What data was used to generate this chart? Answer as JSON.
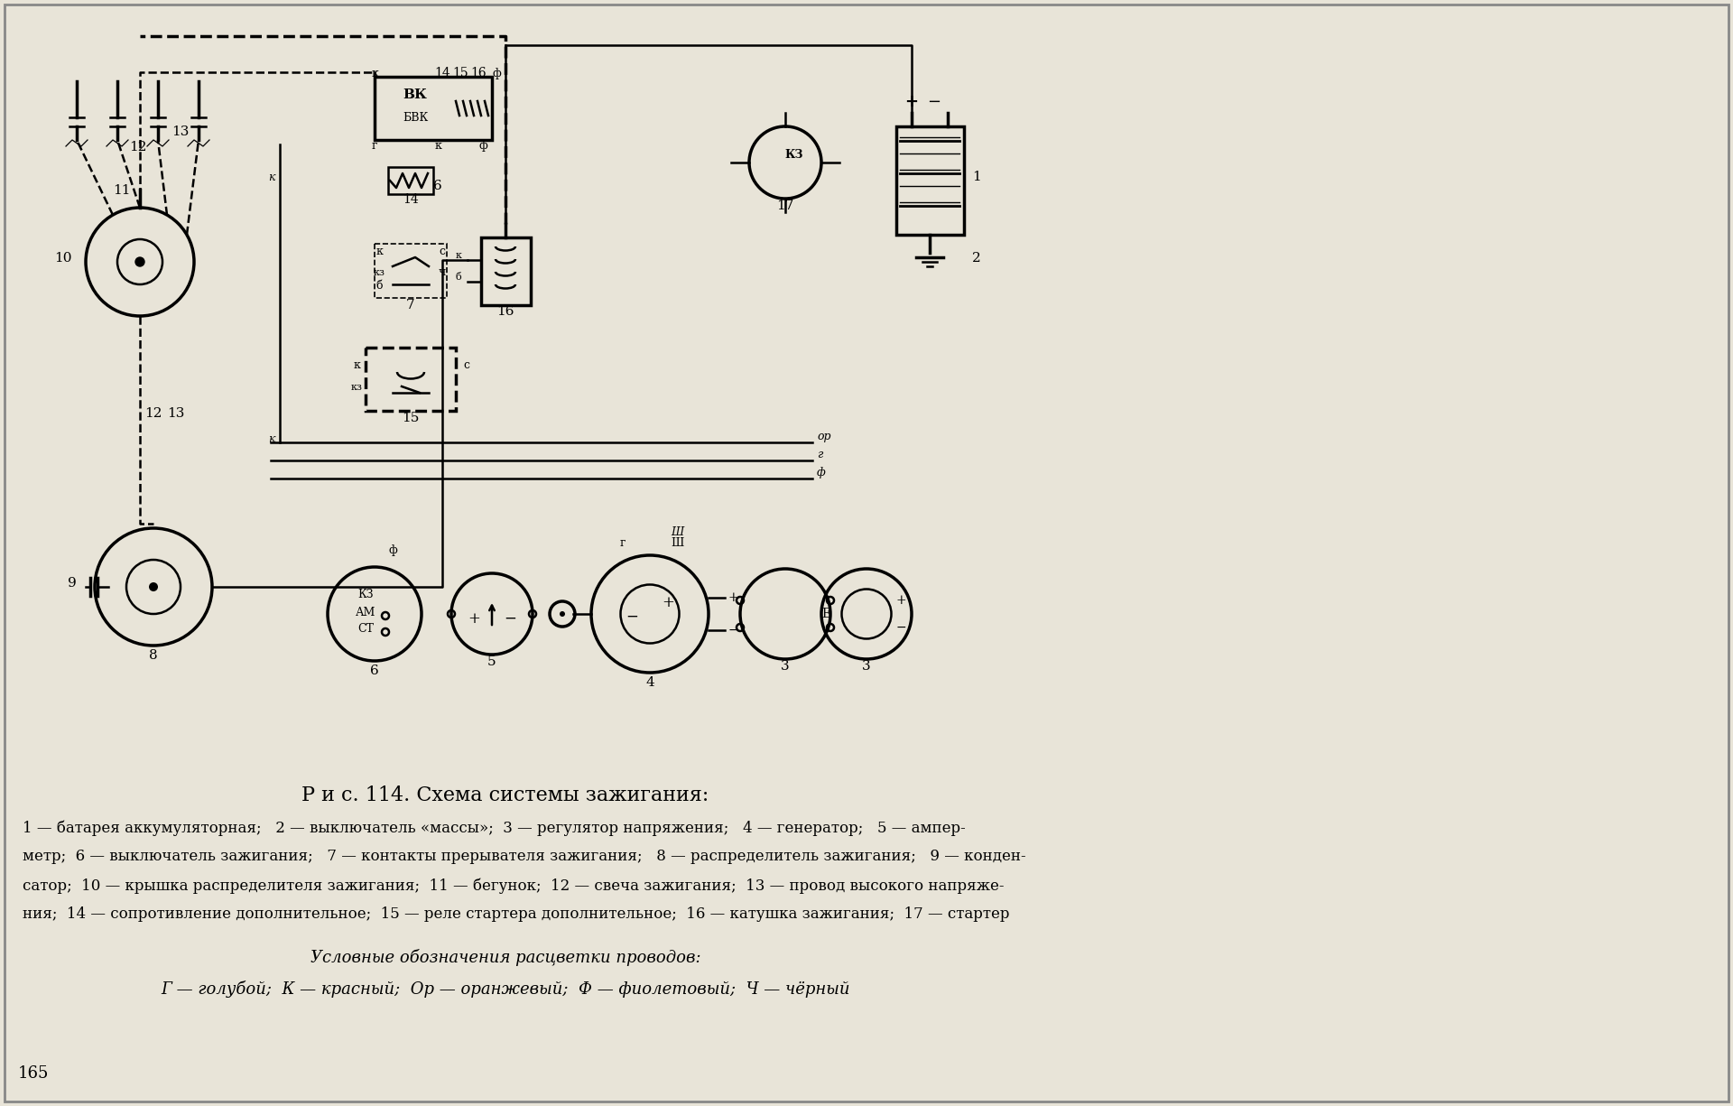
{
  "bg_color": "#e8e4d8",
  "title_fig": "Р и с. 114. Схема системы зажигания:",
  "caption_line1": "1 — батарея аккумуляторная;   2 — выключатель «массы»;  3 — регулятор напряжения;   4 — генератор;   5 — ампер-",
  "caption_line2": "метр;  6 — выключатель зажигания;   7 — контакты прерывателя зажигания;   8 — распределитель зажигания;   9 — конден-",
  "caption_line3": "сатор;  10 — крышка распределителя зажигания;  11 — бегунок;  12 — свеча зажигания;  13 — провод высокого напряже-",
  "caption_line4": "ния;  14 — сопротивление дополнительное;  15 — реле стартера дополнительное;  16 — катушка зажигания;  17 — стартер",
  "legend_title": "Условные обозначения расцветки проводов:",
  "legend_line": "Г — голубой;  К — красный;  Ор — оранжевый;  Ф — фиолетовый;  Ч — чёрный",
  "page_num": "165",
  "figsize": [
    19.2,
    12.25
  ],
  "dpi": 100
}
